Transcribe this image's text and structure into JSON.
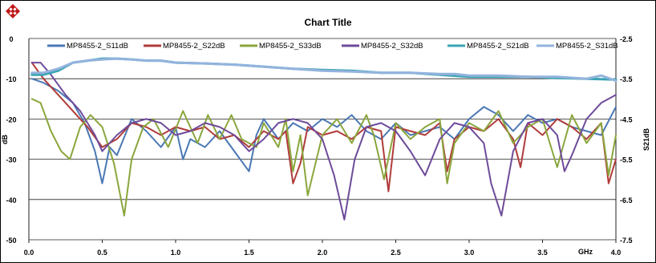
{
  "chart_data": {
    "type": "line",
    "title": "Chart Title",
    "xlabel": "GHz",
    "ylabel": "dB",
    "y2label": "S21dB",
    "xlim": [
      0.0,
      4.0
    ],
    "ylim": [
      -50,
      0
    ],
    "y2lim": [
      -7.5,
      -2.5
    ],
    "x_ticks": [
      "0.0",
      "0.5",
      "1.0",
      "1.5",
      "2.0",
      "2.5",
      "3.0",
      "3.5",
      "4.0"
    ],
    "y_ticks": [
      "0",
      "-10",
      "-20",
      "-30",
      "-40",
      "-50"
    ],
    "y2_ticks": [
      "-2.5",
      "-3.5",
      "-4.5",
      "-5.5",
      "-6.5",
      "-7.5"
    ],
    "grid": true,
    "legend": "top",
    "series": [
      {
        "name": "MP8455-2_S11dB",
        "color": "#4a78b4",
        "axis": "left",
        "x": [
          0.02,
          0.1,
          0.2,
          0.3,
          0.38,
          0.45,
          0.5,
          0.55,
          0.6,
          0.7,
          0.8,
          0.9,
          1.0,
          1.05,
          1.1,
          1.2,
          1.3,
          1.4,
          1.5,
          1.55,
          1.6,
          1.7,
          1.8,
          1.9,
          2.0,
          2.1,
          2.2,
          2.3,
          2.4,
          2.5,
          2.6,
          2.7,
          2.8,
          2.9,
          3.0,
          3.1,
          3.2,
          3.3,
          3.4,
          3.5,
          3.6,
          3.7,
          3.8,
          3.9,
          4.0
        ],
        "y": [
          -10,
          -11,
          -13,
          -16,
          -21,
          -28,
          -36,
          -27,
          -29,
          -20,
          -23,
          -27,
          -22,
          -30,
          -25,
          -27,
          -23,
          -28,
          -33,
          -24,
          -20,
          -25,
          -21,
          -23,
          -20,
          -22,
          -19,
          -23,
          -25,
          -21,
          -24,
          -23,
          -22,
          -25,
          -20,
          -17,
          -19,
          -23,
          -19,
          -21,
          -20,
          -22,
          -23,
          -24,
          -17
        ]
      },
      {
        "name": "MP8455-2_S22dB",
        "color": "#b03c3a",
        "axis": "left",
        "x": [
          0.02,
          0.1,
          0.2,
          0.3,
          0.4,
          0.5,
          0.6,
          0.7,
          0.8,
          0.9,
          1.0,
          1.1,
          1.2,
          1.3,
          1.4,
          1.5,
          1.6,
          1.7,
          1.75,
          1.8,
          1.85,
          1.9,
          2.0,
          2.1,
          2.2,
          2.3,
          2.4,
          2.45,
          2.5,
          2.6,
          2.7,
          2.8,
          2.85,
          2.9,
          3.0,
          3.1,
          3.2,
          3.3,
          3.35,
          3.4,
          3.5,
          3.6,
          3.7,
          3.8,
          3.9,
          3.95,
          4.0
        ],
        "y": [
          -6,
          -10,
          -14,
          -18,
          -22,
          -27,
          -25,
          -21,
          -22,
          -24,
          -22,
          -23,
          -22,
          -25,
          -24,
          -27,
          -23,
          -25,
          -23,
          -36,
          -31,
          -22,
          -24,
          -23,
          -25,
          -22,
          -23,
          -38,
          -22,
          -23,
          -24,
          -21,
          -33,
          -25,
          -22,
          -23,
          -20,
          -25,
          -32,
          -21,
          -24,
          -20,
          -22,
          -25,
          -21,
          -36,
          -30
        ]
      },
      {
        "name": "MP8455-2_S33dB",
        "color": "#8aa63c",
        "axis": "left",
        "x": [
          0.02,
          0.08,
          0.15,
          0.22,
          0.28,
          0.35,
          0.42,
          0.5,
          0.58,
          0.65,
          0.7,
          0.78,
          0.85,
          0.95,
          1.05,
          1.15,
          1.22,
          1.3,
          1.38,
          1.45,
          1.55,
          1.6,
          1.7,
          1.75,
          1.8,
          1.85,
          1.9,
          2.0,
          2.1,
          2.2,
          2.3,
          2.35,
          2.42,
          2.5,
          2.6,
          2.7,
          2.8,
          2.85,
          2.9,
          3.0,
          3.1,
          3.2,
          3.3,
          3.4,
          3.5,
          3.55,
          3.6,
          3.7,
          3.8,
          3.9,
          3.95,
          4.0
        ],
        "y": [
          -15,
          -16,
          -23,
          -28,
          -30,
          -22,
          -19,
          -22,
          -31,
          -44,
          -30,
          -22,
          -20,
          -27,
          -18,
          -26,
          -19,
          -25,
          -19,
          -25,
          -27,
          -21,
          -27,
          -20,
          -33,
          -24,
          -39,
          -24,
          -20,
          -26,
          -19,
          -24,
          -35,
          -21,
          -25,
          -22,
          -20,
          -36,
          -26,
          -21,
          -23,
          -18,
          -26,
          -22,
          -20,
          -26,
          -32,
          -19,
          -26,
          -21,
          -34,
          -24
        ]
      },
      {
        "name": "MP8455-2_S32dB",
        "color": "#6e4b9a",
        "axis": "left",
        "x": [
          0.02,
          0.08,
          0.15,
          0.25,
          0.35,
          0.45,
          0.5,
          0.6,
          0.7,
          0.8,
          0.9,
          1.0,
          1.1,
          1.2,
          1.3,
          1.4,
          1.5,
          1.6,
          1.7,
          1.8,
          1.9,
          2.0,
          2.08,
          2.15,
          2.22,
          2.3,
          2.4,
          2.5,
          2.6,
          2.7,
          2.8,
          2.9,
          3.0,
          3.1,
          3.15,
          3.22,
          3.3,
          3.4,
          3.5,
          3.6,
          3.65,
          3.7,
          3.8,
          3.9,
          4.0
        ],
        "y": [
          -6,
          -6,
          -9,
          -14,
          -18,
          -24,
          -28,
          -24,
          -21,
          -20,
          -21,
          -24,
          -23,
          -21,
          -22,
          -24,
          -28,
          -25,
          -21,
          -20,
          -21,
          -25,
          -34,
          -45,
          -30,
          -22,
          -21,
          -23,
          -28,
          -34,
          -25,
          -21,
          -22,
          -26,
          -36,
          -44,
          -28,
          -21,
          -20,
          -24,
          -33,
          -29,
          -20,
          -16,
          -14
        ]
      },
      {
        "name": "MP8455-2_S21dB",
        "color": "#3aa4b4",
        "axis": "right",
        "x": [
          0.02,
          0.1,
          0.2,
          0.3,
          0.4,
          0.5,
          0.6,
          0.7,
          0.8,
          0.9,
          1.0,
          1.2,
          1.4,
          1.6,
          1.8,
          2.0,
          2.2,
          2.4,
          2.6,
          2.8,
          3.0,
          3.2,
          3.4,
          3.6,
          3.8,
          4.0
        ],
        "y": [
          -3.4,
          -3.4,
          -3.3,
          -3.1,
          -3.05,
          -3.0,
          -3.0,
          -3.02,
          -3.05,
          -3.05,
          -3.1,
          -3.12,
          -3.15,
          -3.2,
          -3.25,
          -3.28,
          -3.3,
          -3.35,
          -3.35,
          -3.4,
          -3.45,
          -3.45,
          -3.45,
          -3.48,
          -3.5,
          -3.52
        ]
      },
      {
        "name": "MP8455-2_S31dB",
        "color": "#93b3dd",
        "axis": "right",
        "x": [
          0.02,
          0.1,
          0.2,
          0.3,
          0.4,
          0.5,
          0.6,
          0.7,
          0.8,
          0.9,
          1.0,
          1.2,
          1.4,
          1.6,
          1.8,
          2.0,
          2.2,
          2.4,
          2.6,
          2.8,
          2.9,
          3.0,
          3.2,
          3.4,
          3.6,
          3.8,
          3.9,
          4.0
        ],
        "y": [
          -3.35,
          -3.35,
          -3.25,
          -3.1,
          -3.05,
          -3.02,
          -3.0,
          -3.02,
          -3.05,
          -3.05,
          -3.1,
          -3.12,
          -3.15,
          -3.2,
          -3.25,
          -3.3,
          -3.32,
          -3.35,
          -3.35,
          -3.38,
          -3.38,
          -3.42,
          -3.42,
          -3.45,
          -3.45,
          -3.5,
          -3.42,
          -3.55
        ]
      }
    ]
  }
}
